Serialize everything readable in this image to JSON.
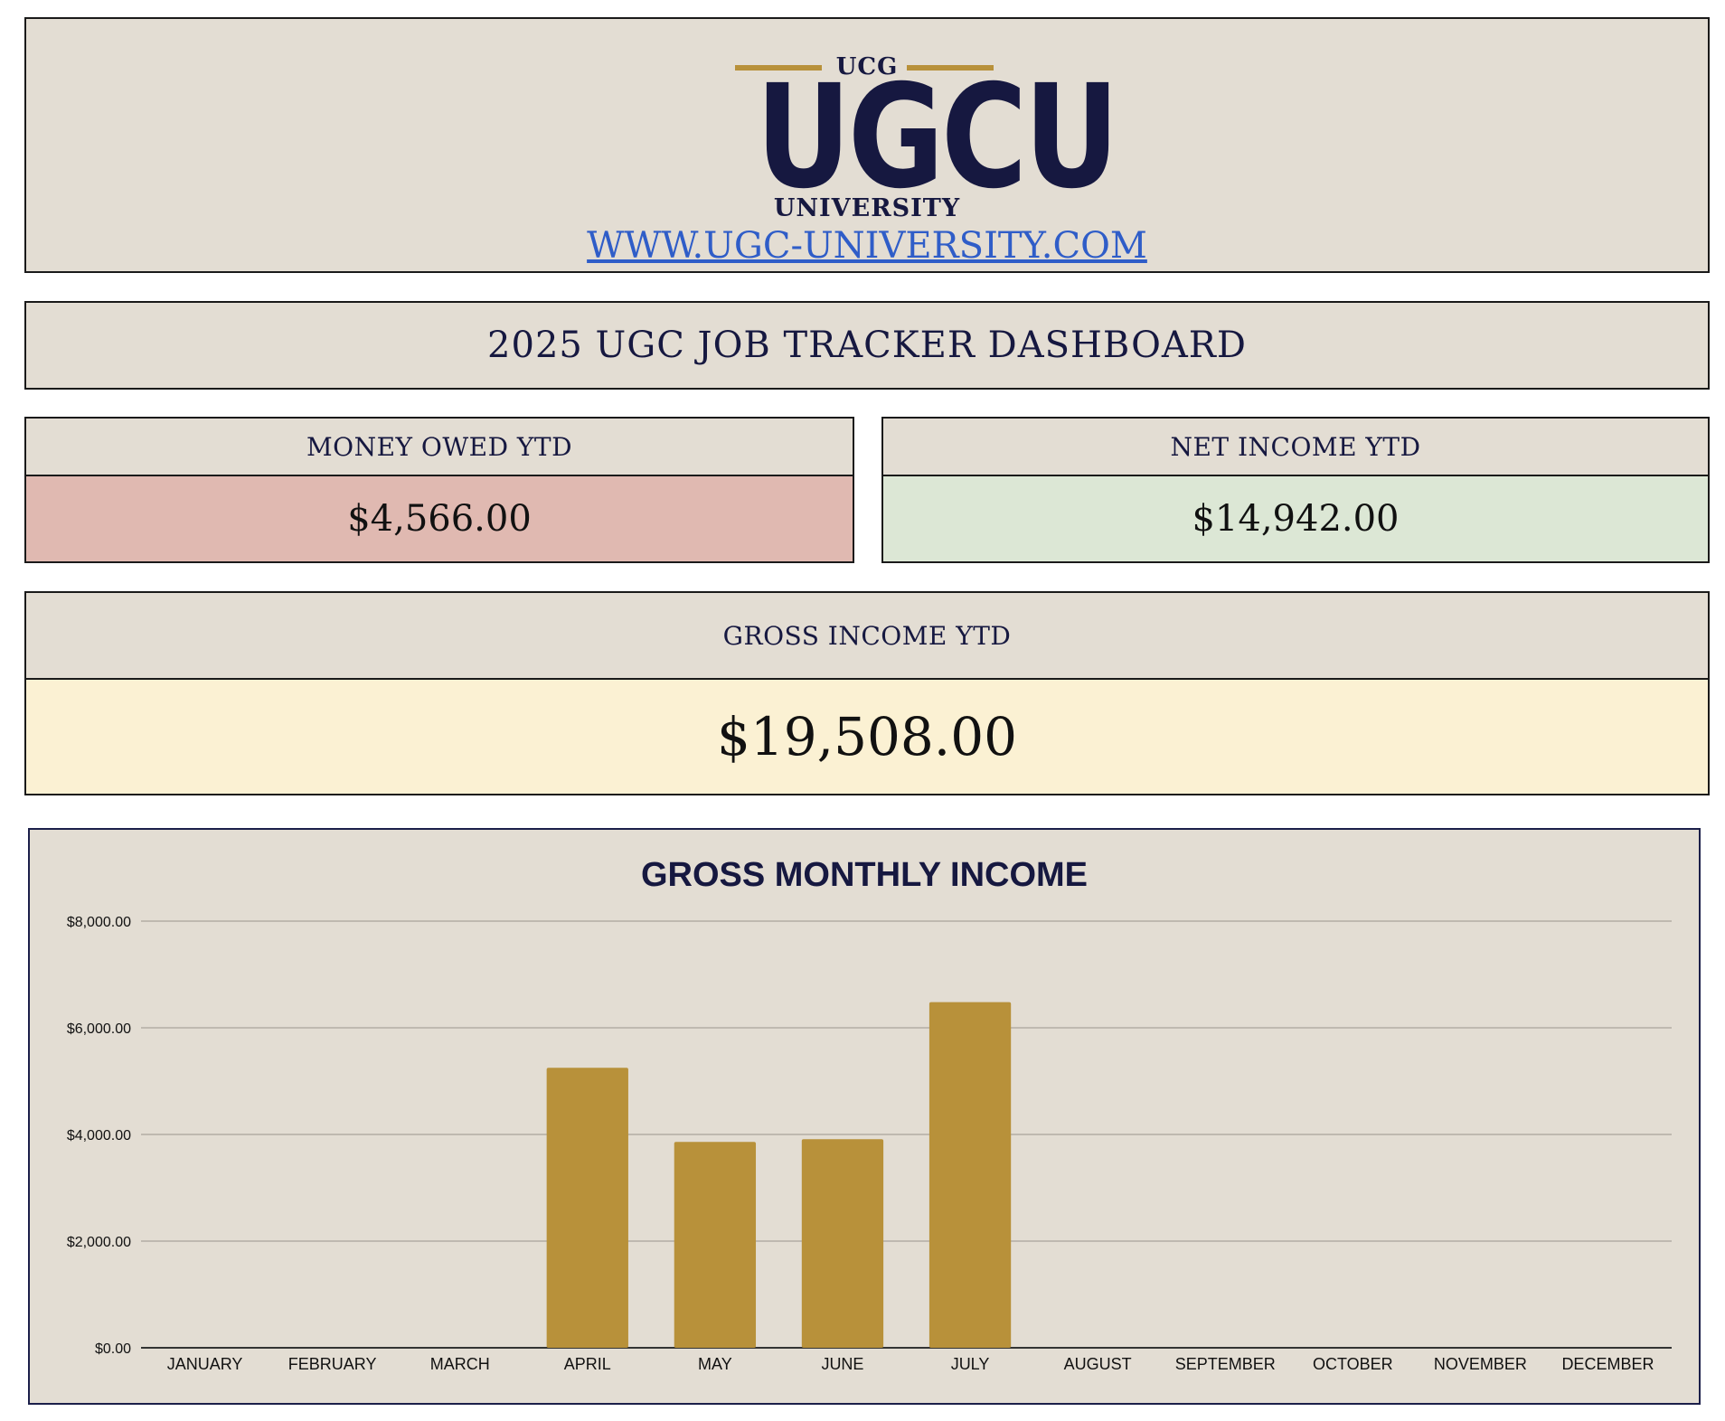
{
  "header": {
    "logo_small_text": "UCG",
    "logo_main_text": "UGCU",
    "logo_sub_text": "UNIVERSITY",
    "website_link": "WWW.UGC-UNIVERSITY.COM"
  },
  "dashboard_title": "2025 UGC JOB TRACKER DASHBOARD",
  "kpis": {
    "money_owed": {
      "label": "MONEY OWED YTD",
      "value": "$4,566.00",
      "color": "#e0b9b1"
    },
    "net_income": {
      "label": "NET INCOME YTD",
      "value": "$14,942.00",
      "color": "#dce7d5"
    },
    "gross_income": {
      "label": "GROSS INCOME YTD",
      "value": "$19,508.00",
      "color": "#fbf1d3"
    }
  },
  "colors": {
    "panel_bg": "#e3ddd3",
    "navy": "#161840",
    "gold": "#b8913a",
    "link": "#2f5dc8"
  },
  "chart_data": {
    "type": "bar",
    "title": "GROSS MONTHLY INCOME",
    "xlabel": "",
    "ylabel": "",
    "categories": [
      "JANUARY",
      "FEBRUARY",
      "MARCH",
      "APRIL",
      "MAY",
      "JUNE",
      "JULY",
      "AUGUST",
      "SEPTEMBER",
      "OCTOBER",
      "NOVEMBER",
      "DECEMBER"
    ],
    "values": [
      0,
      0,
      0,
      5250,
      3860,
      3910,
      6480,
      0,
      0,
      0,
      0,
      0
    ],
    "ylim": [
      0,
      8000
    ],
    "yticks": [
      "$0.00",
      "$2,000.00",
      "$4,000.00",
      "$6,000.00",
      "$8,000.00"
    ],
    "ytick_values": [
      0,
      2000,
      4000,
      6000,
      8000
    ],
    "bar_color": "#b8913a",
    "grid": true,
    "legend": "none"
  }
}
